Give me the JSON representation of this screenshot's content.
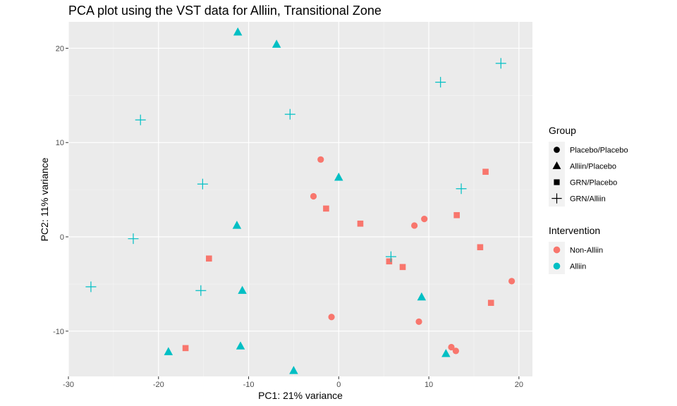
{
  "chart_data": {
    "type": "scatter",
    "title": "PCA plot using the VST data for Alliin, Transitional Zone",
    "xlabel": "PC1: 21% variance",
    "ylabel": "PC2: 11% variance",
    "xlim": [
      -30,
      21.5
    ],
    "ylim": [
      -14.8,
      22.8
    ],
    "x_ticks": [
      -30,
      -20,
      -10,
      0,
      10,
      20
    ],
    "y_ticks": [
      -10,
      0,
      10,
      20
    ],
    "grid": true,
    "legend_position": "right",
    "colors": {
      "Non-Alliin": "#F8766D",
      "Alliin": "#00BFC4"
    },
    "legends": [
      {
        "title": "Group",
        "type": "shape",
        "entries": [
          {
            "label": "Placebo/Placebo",
            "shape": "circle"
          },
          {
            "label": "Alliin/Placebo",
            "shape": "triangle"
          },
          {
            "label": "GRN/Placebo",
            "shape": "square"
          },
          {
            "label": "GRN/Alliin",
            "shape": "plus"
          }
        ]
      },
      {
        "title": "Intervention",
        "type": "color",
        "entries": [
          {
            "label": "Non-Alliin",
            "color": "#F8766D"
          },
          {
            "label": "Alliin",
            "color": "#00BFC4"
          }
        ]
      }
    ],
    "points": [
      {
        "x": -2.0,
        "y": 8.2,
        "group": "Placebo/Placebo",
        "intervention": "Non-Alliin"
      },
      {
        "x": -2.8,
        "y": 4.3,
        "group": "Placebo/Placebo",
        "intervention": "Non-Alliin"
      },
      {
        "x": 8.4,
        "y": 1.2,
        "group": "Placebo/Placebo",
        "intervention": "Non-Alliin"
      },
      {
        "x": 9.5,
        "y": 1.9,
        "group": "Placebo/Placebo",
        "intervention": "Non-Alliin"
      },
      {
        "x": -0.8,
        "y": -8.5,
        "group": "Placebo/Placebo",
        "intervention": "Non-Alliin"
      },
      {
        "x": 8.9,
        "y": -9.0,
        "group": "Placebo/Placebo",
        "intervention": "Non-Alliin"
      },
      {
        "x": 12.5,
        "y": -11.7,
        "group": "Placebo/Placebo",
        "intervention": "Non-Alliin"
      },
      {
        "x": 13.0,
        "y": -12.1,
        "group": "Placebo/Placebo",
        "intervention": "Non-Alliin"
      },
      {
        "x": 19.2,
        "y": -4.7,
        "group": "Placebo/Placebo",
        "intervention": "Non-Alliin"
      },
      {
        "x": -1.4,
        "y": 3.0,
        "group": "GRN/Placebo",
        "intervention": "Non-Alliin"
      },
      {
        "x": 2.4,
        "y": 1.4,
        "group": "GRN/Placebo",
        "intervention": "Non-Alliin"
      },
      {
        "x": 5.6,
        "y": -2.6,
        "group": "GRN/Placebo",
        "intervention": "Non-Alliin"
      },
      {
        "x": 7.1,
        "y": -3.2,
        "group": "GRN/Placebo",
        "intervention": "Non-Alliin"
      },
      {
        "x": 13.1,
        "y": 2.3,
        "group": "GRN/Placebo",
        "intervention": "Non-Alliin"
      },
      {
        "x": 16.3,
        "y": 6.9,
        "group": "GRN/Placebo",
        "intervention": "Non-Alliin"
      },
      {
        "x": 15.7,
        "y": -1.1,
        "group": "GRN/Placebo",
        "intervention": "Non-Alliin"
      },
      {
        "x": 16.9,
        "y": -7.0,
        "group": "GRN/Placebo",
        "intervention": "Non-Alliin"
      },
      {
        "x": -14.4,
        "y": -2.3,
        "group": "GRN/Placebo",
        "intervention": "Non-Alliin"
      },
      {
        "x": -17.0,
        "y": -11.8,
        "group": "GRN/Placebo",
        "intervention": "Non-Alliin"
      },
      {
        "x": -11.2,
        "y": 21.7,
        "group": "Alliin/Placebo",
        "intervention": "Alliin"
      },
      {
        "x": -6.9,
        "y": 20.4,
        "group": "Alliin/Placebo",
        "intervention": "Alliin"
      },
      {
        "x": 0.0,
        "y": 6.3,
        "group": "Alliin/Placebo",
        "intervention": "Alliin"
      },
      {
        "x": -11.3,
        "y": 1.2,
        "group": "Alliin/Placebo",
        "intervention": "Alliin"
      },
      {
        "x": -10.7,
        "y": -5.7,
        "group": "Alliin/Placebo",
        "intervention": "Alliin"
      },
      {
        "x": 9.2,
        "y": -6.4,
        "group": "Alliin/Placebo",
        "intervention": "Alliin"
      },
      {
        "x": -18.9,
        "y": -12.2,
        "group": "Alliin/Placebo",
        "intervention": "Alliin"
      },
      {
        "x": -10.9,
        "y": -11.6,
        "group": "Alliin/Placebo",
        "intervention": "Alliin"
      },
      {
        "x": -5.0,
        "y": -14.2,
        "group": "Alliin/Placebo",
        "intervention": "Alliin"
      },
      {
        "x": 11.9,
        "y": -12.4,
        "group": "Alliin/Placebo",
        "intervention": "Alliin"
      },
      {
        "x": 18.0,
        "y": 18.4,
        "group": "GRN/Alliin",
        "intervention": "Alliin"
      },
      {
        "x": 11.3,
        "y": 16.4,
        "group": "GRN/Alliin",
        "intervention": "Alliin"
      },
      {
        "x": -5.4,
        "y": 13.0,
        "group": "GRN/Alliin",
        "intervention": "Alliin"
      },
      {
        "x": -22.0,
        "y": 12.4,
        "group": "GRN/Alliin",
        "intervention": "Alliin"
      },
      {
        "x": -15.1,
        "y": 5.6,
        "group": "GRN/Alliin",
        "intervention": "Alliin"
      },
      {
        "x": 13.6,
        "y": 5.1,
        "group": "GRN/Alliin",
        "intervention": "Alliin"
      },
      {
        "x": -22.8,
        "y": -0.2,
        "group": "GRN/Alliin",
        "intervention": "Alliin"
      },
      {
        "x": 5.8,
        "y": -2.1,
        "group": "GRN/Alliin",
        "intervention": "Alliin"
      },
      {
        "x": -27.5,
        "y": -5.3,
        "group": "GRN/Alliin",
        "intervention": "Alliin"
      },
      {
        "x": -15.3,
        "y": -5.7,
        "group": "GRN/Alliin",
        "intervention": "Alliin"
      }
    ]
  }
}
